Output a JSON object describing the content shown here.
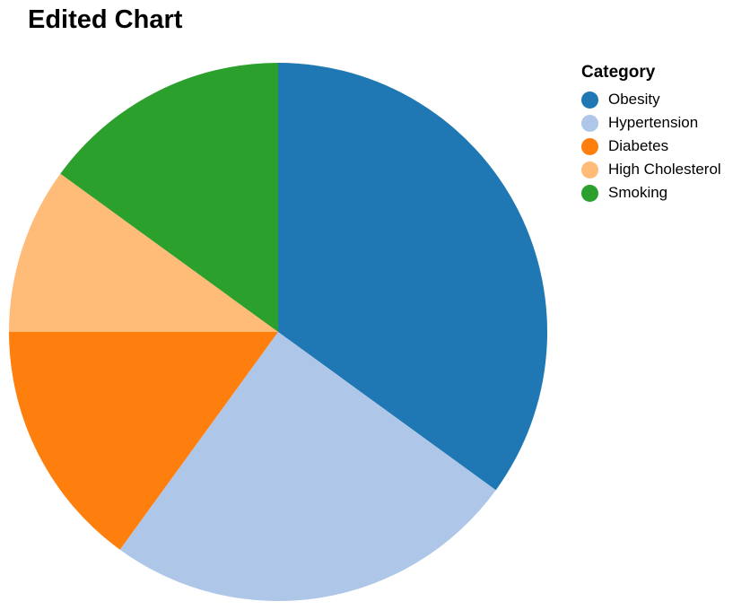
{
  "chart_data": {
    "type": "pie",
    "title": "Edited Chart",
    "legend": {
      "title": "Category",
      "placement": "top-right"
    },
    "slices": [
      {
        "label": "Obesity",
        "value": 35,
        "color": "#1f77b4"
      },
      {
        "label": "Hypertension",
        "value": 25,
        "color": "#aec7e8"
      },
      {
        "label": "Diabetes",
        "value": 15,
        "color": "#ff7f0e"
      },
      {
        "label": "High Cholesterol",
        "value": 10,
        "color": "#ffbb78"
      },
      {
        "label": "Smoking",
        "value": 15,
        "color": "#2ca02c"
      }
    ]
  }
}
